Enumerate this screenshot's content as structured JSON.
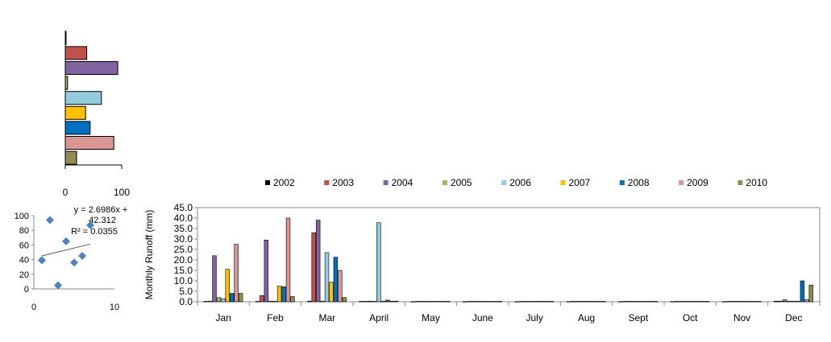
{
  "chart_data": [
    {
      "type": "bar",
      "orientation": "horizontal",
      "categories": [
        "2002",
        "2003",
        "2004",
        "2005",
        "2006",
        "2007",
        "2008",
        "2009",
        "2010"
      ],
      "values": [
        1,
        38,
        93,
        4,
        64,
        36,
        44,
        86,
        20
      ],
      "xlim": [
        0,
        100
      ],
      "xticks": [
        "0",
        "100"
      ],
      "colors": [
        "#000000",
        "#c0504d",
        "#8064a2",
        "#9bbb59",
        "#93cddd",
        "#ffc000",
        "#0070c0",
        "#d99694",
        "#948a54"
      ]
    },
    {
      "type": "scatter",
      "points": [
        [
          1,
          39
        ],
        [
          2,
          94
        ],
        [
          3,
          5
        ],
        [
          4,
          65
        ],
        [
          5,
          36
        ],
        [
          6,
          45
        ],
        [
          7,
          87
        ]
      ],
      "xlim": [
        0,
        10
      ],
      "ylim": [
        0,
        100
      ],
      "xticks": [
        "0",
        "10"
      ],
      "yticks": [
        "0",
        "20",
        "40",
        "60",
        "80",
        "100"
      ],
      "trendline": {
        "slope": 2.6986,
        "intercept": 42.312,
        "x_range": [
          1,
          7
        ]
      },
      "annotation_lines": [
        "y = 2.6986x +",
        "42.312",
        "R² = 0.0355"
      ],
      "marker_color": "#4f81bd"
    },
    {
      "type": "bar",
      "categories": [
        "Jan",
        "Feb",
        "Mar",
        "April",
        "May",
        "June",
        "July",
        "Aug",
        "Sept",
        "Oct",
        "Nov",
        "Dec"
      ],
      "ylabel": "Monthly  Runoff (mm)",
      "ylim": [
        0,
        45
      ],
      "yticks": [
        "0.0",
        "5.0",
        "10.0",
        "15.0",
        "20.0",
        "25.0",
        "30.0",
        "35.0",
        "40.0",
        "45.0"
      ],
      "legend_position": "top",
      "series": [
        {
          "name": "2002",
          "color": "#000000",
          "values": [
            0.2,
            0.2,
            0.3,
            0.2,
            0.1,
            0.1,
            0.1,
            0.1,
            0.1,
            0.1,
            0.1,
            0.3
          ]
        },
        {
          "name": "2003",
          "color": "#c0504d",
          "values": [
            0.3,
            3.0,
            33.0,
            0.2,
            0.2,
            0.2,
            0.2,
            0.2,
            0.2,
            0.2,
            0.2,
            0.3
          ]
        },
        {
          "name": "2004",
          "color": "#8064a2",
          "values": [
            22.0,
            29.5,
            39.0,
            0.3,
            0.2,
            0.2,
            0.2,
            0.2,
            0.2,
            0.2,
            0.2,
            0.9
          ]
        },
        {
          "name": "2005",
          "color": "#9bbb59",
          "values": [
            2.0,
            0.3,
            0.3,
            0.2,
            0.2,
            0.2,
            0.2,
            0.2,
            0.2,
            0.2,
            0.2,
            0.3
          ]
        },
        {
          "name": "2006",
          "color": "#93cddd",
          "values": [
            1.5,
            0.3,
            23.5,
            37.8,
            0.2,
            0.2,
            0.2,
            0.2,
            0.2,
            0.2,
            0.2,
            0.3
          ]
        },
        {
          "name": "2007",
          "color": "#ffc000",
          "values": [
            15.5,
            7.5,
            9.3,
            0.3,
            0.2,
            0.2,
            0.2,
            0.2,
            0.2,
            0.2,
            0.2,
            0.3
          ]
        },
        {
          "name": "2008",
          "color": "#0070c0",
          "values": [
            4.0,
            7.2,
            21.3,
            0.8,
            0.2,
            0.2,
            0.2,
            0.2,
            0.2,
            0.2,
            0.2,
            10.0
          ]
        },
        {
          "name": "2009",
          "color": "#d99694",
          "values": [
            27.5,
            40.0,
            15.0,
            0.3,
            0.2,
            0.2,
            0.2,
            0.2,
            0.2,
            0.2,
            0.2,
            1.0
          ]
        },
        {
          "name": "2010",
          "color": "#948a54",
          "values": [
            4.0,
            2.5,
            2.0,
            0.3,
            0.2,
            0.2,
            0.2,
            0.2,
            0.2,
            0.2,
            0.2,
            8.0
          ]
        }
      ]
    }
  ]
}
